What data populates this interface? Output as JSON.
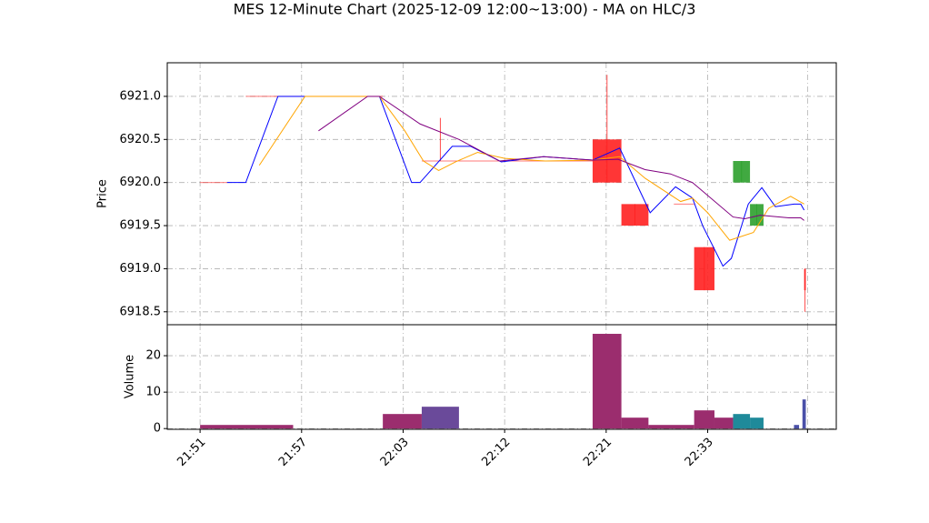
{
  "chart_data": {
    "type": "candlestick",
    "title": "MES 12-Minute Chart (2025-12-09 12:00~13:00) - MA on HLC/3",
    "grid": true,
    "xlim": [
      -1.94,
      37.6
    ],
    "xticks": [
      {
        "value": 0,
        "label": "21:51"
      },
      {
        "value": 6,
        "label": "21:57"
      },
      {
        "value": 12,
        "label": "22:03"
      },
      {
        "value": 18,
        "label": "22:12"
      },
      {
        "value": 24,
        "label": "22:21"
      },
      {
        "value": 30,
        "label": "22:33"
      },
      {
        "value": 35.9,
        "label": null
      }
    ],
    "price": {
      "ylabel": "Price",
      "ylim": [
        6918.35,
        6921.39
      ],
      "yticks": [
        {
          "value": 6918.5,
          "label": "6918.5"
        },
        {
          "value": 6919.0,
          "label": "6919.0"
        },
        {
          "value": 6919.5,
          "label": "6919.5"
        },
        {
          "value": 6920.0,
          "label": "6920.0"
        },
        {
          "value": 6920.5,
          "label": "6920.5"
        },
        {
          "value": 6921.0,
          "label": "6921.0"
        }
      ],
      "up_color": "#2ca02c",
      "down_color": "#ff2020",
      "x_start": [
        0,
        2.7,
        13.1,
        15.3,
        23.2,
        24.9,
        28.0,
        29.2,
        31.5,
        32.5,
        35.7
      ],
      "x_end": [
        1.6,
        10.8,
        15.3,
        23.2,
        24.9,
        26.5,
        29.2,
        30.4,
        32.5,
        33.3,
        35.8
      ],
      "open": [
        6920.0,
        6921.0,
        6920.25,
        6920.25,
        6920.5,
        6919.75,
        6919.75,
        6919.25,
        6920.0,
        6919.5,
        6919.0
      ],
      "high": [
        6920.0,
        6921.0,
        6920.75,
        6920.25,
        6921.25,
        6919.75,
        6919.75,
        6919.25,
        6920.25,
        6919.75,
        6919.0
      ],
      "low": [
        6920.0,
        6921.0,
        6920.25,
        6920.25,
        6920.0,
        6919.5,
        6919.75,
        6918.75,
        6920.0,
        6919.5,
        6918.5
      ],
      "close": [
        6920.0,
        6921.0,
        6920.25,
        6920.25,
        6920.0,
        6919.5,
        6919.75,
        6918.75,
        6920.25,
        6919.75,
        6918.75
      ],
      "lines": [
        {
          "color": "blue",
          "x": [
            1.6,
            2.7,
            4.6,
            10.6,
            12.5,
            13,
            14.9,
            16,
            17.8,
            20.3,
            23.2,
            24.8,
            26.6,
            28.1,
            29.1,
            29.7,
            30.9,
            31.4,
            32.4,
            33.2,
            34,
            35.1,
            35.5,
            35.7
          ],
          "values": [
            6920.0,
            6920.0,
            6921.0,
            6921.0,
            6920.0,
            6920.0,
            6920.42,
            6920.42,
            6920.24,
            6920.3,
            6920.26,
            6920.4,
            6919.65,
            6919.95,
            6919.82,
            6919.5,
            6919.03,
            6919.12,
            6919.75,
            6919.94,
            6919.72,
            6919.75,
            6919.75,
            6919.68
          ]
        },
        {
          "color": "orange",
          "x": [
            3.5,
            6.2,
            10.6,
            12.1,
            13.2,
            14.1,
            15.1,
            16.4,
            18,
            20.4,
            23.2,
            24.8,
            26.3,
            28.4,
            29.1,
            30,
            31.3,
            32.7,
            33.6,
            34.9,
            35.7
          ],
          "values": [
            6920.2,
            6921.0,
            6921.0,
            6920.6,
            6920.25,
            6920.14,
            6920.24,
            6920.35,
            6920.28,
            6920.25,
            6920.26,
            6920.3,
            6920.05,
            6919.78,
            6919.82,
            6919.65,
            6919.33,
            6919.42,
            6919.7,
            6919.84,
            6919.75
          ]
        },
        {
          "color": "purple",
          "x": [
            7,
            9.9,
            10.6,
            13,
            15.3,
            17.7,
            20.3,
            23.2,
            24.7,
            26.3,
            27.8,
            29.1,
            31.5,
            32.2,
            33.1,
            34.8,
            35.5,
            35.7
          ],
          "values": [
            6920.6,
            6921.0,
            6921.0,
            6920.68,
            6920.5,
            6920.25,
            6920.3,
            6920.26,
            6920.27,
            6920.15,
            6920.1,
            6920.0,
            6919.6,
            6919.58,
            6919.62,
            6919.59,
            6919.59,
            6919.56
          ]
        }
      ]
    },
    "volume": {
      "ylabel": "Volume",
      "ylim": [
        -0.2,
        28.5
      ],
      "yticks": [
        0,
        10,
        20
      ],
      "x_start": [
        0,
        10.8,
        13.1,
        23.2,
        24.9,
        26.5,
        29.2,
        30.4,
        31.5,
        32.5,
        35.1,
        35.6
      ],
      "x_end": [
        5.5,
        13.1,
        15.3,
        24.9,
        26.5,
        29.2,
        30.4,
        31.5,
        32.5,
        33.3,
        35.4,
        35.8
      ],
      "values": [
        1,
        4,
        6,
        26,
        3,
        1,
        5,
        3,
        4,
        3,
        1,
        8
      ],
      "colors": [
        "#9b2d6e",
        "#9b2d6e",
        "#6a4a9a",
        "#9b2d6e",
        "#9b2d6e",
        "#9b2d6e",
        "#9b2d6e",
        "#9b2d6e",
        "#1f8a9a",
        "#1f8a9a",
        "#4a50a8",
        "#4a50a8"
      ]
    }
  }
}
